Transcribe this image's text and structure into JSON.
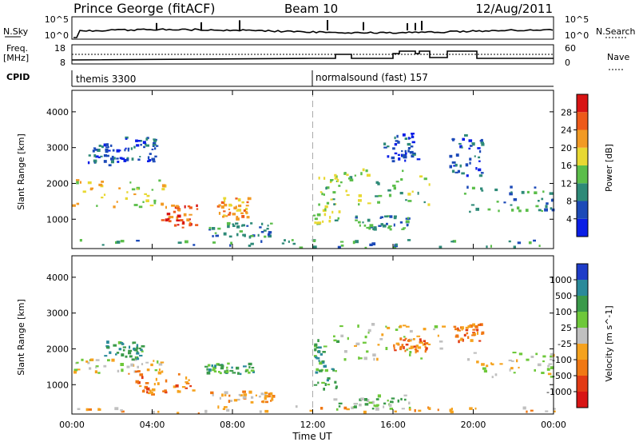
{
  "header": {
    "title": "Prince George (fitACF)",
    "beam": "Beam 10",
    "date": "12/Aug/2011"
  },
  "strip_noise": {
    "left_label": "N.Sky",
    "left_ticks": [
      "10^5",
      "10^0"
    ],
    "right_label": "N.Search",
    "right_ticks": [
      "10^5",
      "10^0"
    ]
  },
  "strip_freq": {
    "left_label_top": "Freq.",
    "left_label_bottom": "[MHz]",
    "left_ticks": [
      "18",
      "8"
    ],
    "right_label": "Nave",
    "right_ticks": [
      "60",
      "0"
    ]
  },
  "cpid": {
    "label": "CPID",
    "segments": [
      {
        "name": "themis 3300",
        "start_hour": 0
      },
      {
        "name": "normalsound (fast) 157",
        "start_hour": 12
      }
    ]
  },
  "chart_data": [
    {
      "type": "heatmap",
      "name": "power-panel",
      "x_range_hours": [
        0,
        24
      ],
      "x_ticks": [
        "00:00",
        "04:00",
        "08:00",
        "12:00",
        "16:00",
        "20:00",
        "00:00"
      ],
      "ylabel": "Slant Range [km]",
      "ylim": [
        180,
        4600
      ],
      "y_ticks": [
        1000,
        2000,
        3000,
        4000
      ],
      "colorbar": {
        "label": "Power [dB]",
        "ticks": [
          "4",
          "8",
          "12",
          "16",
          "20",
          "24",
          "28"
        ],
        "colors": [
          "#0a1ee6",
          "#1c4ab8",
          "#2e8a78",
          "#5bbe4a",
          "#e8d832",
          "#f29a24",
          "#ee5a1a",
          "#d81414"
        ]
      },
      "regions": [
        {
          "t": [
            0.6,
            2.6
          ],
          "r": [
            2500,
            3100
          ],
          "level": 1
        },
        {
          "t": [
            0.0,
            4.6
          ],
          "r": [
            1300,
            2100
          ],
          "level": 4
        },
        {
          "t": [
            4.4,
            6.2
          ],
          "r": [
            750,
            1450
          ],
          "level": 6
        },
        {
          "t": [
            2.6,
            4.2
          ],
          "r": [
            2600,
            3300
          ],
          "level": 1
        },
        {
          "t": [
            7.2,
            8.8
          ],
          "r": [
            1000,
            1600
          ],
          "level": 5
        },
        {
          "t": [
            6.8,
            10.0
          ],
          "r": [
            500,
            900
          ],
          "level": 2
        },
        {
          "t": [
            12.0,
            13.3
          ],
          "r": [
            850,
            2300
          ],
          "level": 3
        },
        {
          "t": [
            13.0,
            17.8
          ],
          "r": [
            1400,
            2400
          ],
          "level": 3
        },
        {
          "t": [
            14.0,
            16.8
          ],
          "r": [
            700,
            1100
          ],
          "level": 2
        },
        {
          "t": [
            15.5,
            17.2
          ],
          "r": [
            2600,
            3400
          ],
          "level": 1
        },
        {
          "t": [
            18.8,
            20.4
          ],
          "r": [
            2200,
            3400
          ],
          "level": 1
        },
        {
          "t": [
            19.5,
            24.0
          ],
          "r": [
            1200,
            1900
          ],
          "level": 2
        },
        {
          "t": [
            0.0,
            24.0
          ],
          "r": [
            200,
            420
          ],
          "level": 2
        }
      ],
      "marker_hour": 12
    },
    {
      "type": "heatmap",
      "name": "velocity-panel",
      "x_range_hours": [
        0,
        24
      ],
      "x_ticks": [
        "00:00",
        "04:00",
        "08:00",
        "12:00",
        "16:00",
        "20:00",
        "00:00"
      ],
      "xlabel": "Time UT",
      "ylabel": "Slant Range [km]",
      "ylim": [
        180,
        4600
      ],
      "y_ticks": [
        1000,
        2000,
        3000,
        4000
      ],
      "colorbar": {
        "label": "Velocity [m s^-1]",
        "ticks": [
          "1000",
          "500",
          "100",
          "25",
          "-25",
          "-100",
          "-500",
          "-1000"
        ],
        "colors": [
          "#1e3cc8",
          "#2a8a9a",
          "#3a9a4a",
          "#6ec83a",
          "#c0c0c0",
          "#f5a21e",
          "#f07814",
          "#e23a14",
          "#d81414"
        ]
      },
      "regions": [
        {
          "t": [
            0.0,
            4.6
          ],
          "r": [
            1300,
            1700
          ],
          "level": 4
        },
        {
          "t": [
            1.5,
            3.5
          ],
          "r": [
            1700,
            2200
          ],
          "level": 2
        },
        {
          "t": [
            2.6,
            6.0
          ],
          "r": [
            700,
            1400
          ],
          "level": 6
        },
        {
          "t": [
            6.6,
            9.0
          ],
          "r": [
            1300,
            1600
          ],
          "level": 2
        },
        {
          "t": [
            6.8,
            10.0
          ],
          "r": [
            500,
            800
          ],
          "level": 5
        },
        {
          "t": [
            12.0,
            13.2
          ],
          "r": [
            850,
            2300
          ],
          "level": 2
        },
        {
          "t": [
            13.0,
            18.5
          ],
          "r": [
            1700,
            2700
          ],
          "level": 4
        },
        {
          "t": [
            13.0,
            17.0
          ],
          "r": [
            300,
            700
          ],
          "level": 3
        },
        {
          "t": [
            16.0,
            17.8
          ],
          "r": [
            1900,
            2300
          ],
          "level": 6
        },
        {
          "t": [
            19.0,
            20.4
          ],
          "r": [
            2200,
            2700
          ],
          "level": 6
        },
        {
          "t": [
            19.5,
            24.0
          ],
          "r": [
            1200,
            1900
          ],
          "level": 4
        },
        {
          "t": [
            0.0,
            24.0
          ],
          "r": [
            200,
            400
          ],
          "level": 5
        }
      ],
      "marker_hour": 12
    }
  ]
}
